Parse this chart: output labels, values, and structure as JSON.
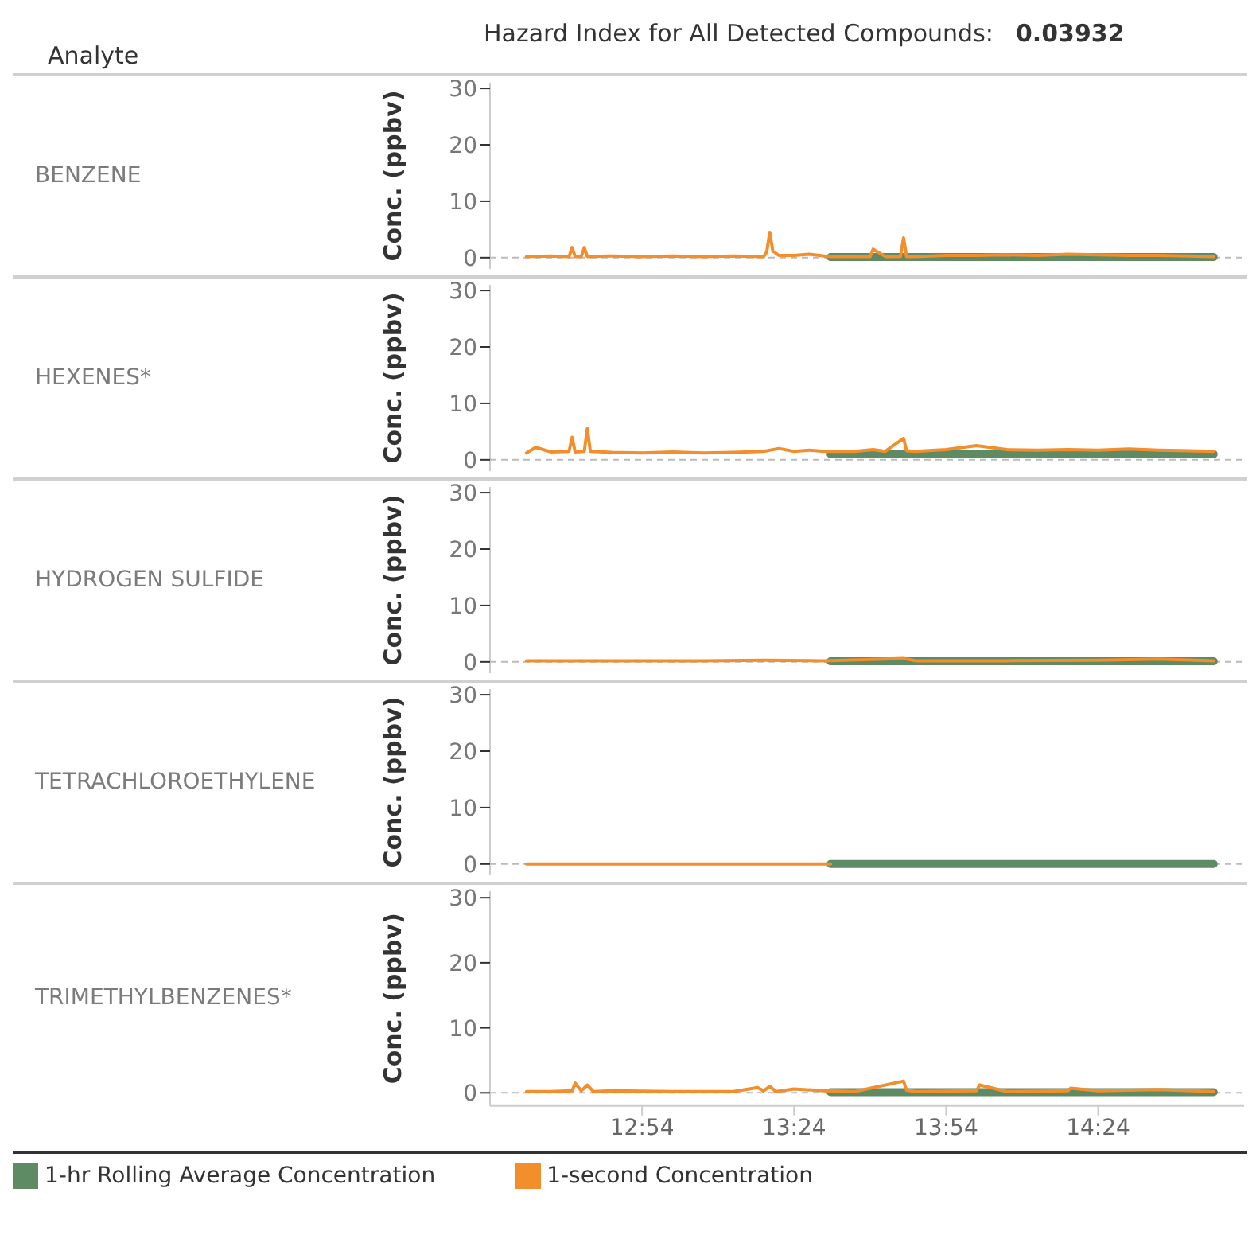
{
  "chart_data": [
    {
      "type": "line",
      "annotations": [
        "Analyte",
        "Hazard Index for All Detected Compounds:",
        "0.03932",
        "BENZENE"
      ],
      "ylabel": "Conc. (ppbv)",
      "xlim": [
        12.4,
        14.88
      ],
      "ylim": [
        -2,
        31
      ],
      "yticks": [
        0,
        10,
        20,
        30
      ],
      "tick_labels": "y",
      "legend": false,
      "ref_lines": [
        {
          "axis": "y",
          "value": 0,
          "line_style": "dashed",
          "color": "#bbbbbb"
        }
      ],
      "series": [
        {
          "color": "#f28e2b",
          "x": [
            12.52,
            12.6,
            12.66,
            12.67,
            12.68,
            12.7,
            12.71,
            12.72,
            12.8,
            12.9,
            13.0,
            13.1,
            13.2,
            13.3,
            13.31,
            13.32,
            13.33,
            13.35,
            13.4,
            13.45,
            13.5,
            13.52,
            13.6,
            13.65,
            13.66,
            13.7,
            13.75,
            13.76,
            13.77,
            13.8,
            13.9,
            14.0,
            14.1,
            14.2,
            14.3,
            14.4,
            14.5,
            14.6,
            14.7,
            14.78
          ],
          "values": [
            0.2,
            0.3,
            0.2,
            1.8,
            0.2,
            0.2,
            1.8,
            0.2,
            0.3,
            0.2,
            0.3,
            0.2,
            0.3,
            0.2,
            1.0,
            4.5,
            1.2,
            0.4,
            0.4,
            0.6,
            0.3,
            0.2,
            0.2,
            0.2,
            1.5,
            0.2,
            0.2,
            3.5,
            0.2,
            0.2,
            0.4,
            0.4,
            0.5,
            0.4,
            0.6,
            0.5,
            0.4,
            0.4,
            0.3,
            0.2
          ]
        },
        {
          "color": "#5f8b64",
          "x": [
            13.52,
            13.8,
            14.1,
            14.4,
            14.78
          ],
          "values": [
            0.1,
            0.1,
            0.1,
            0.1,
            0.1
          ]
        }
      ]
    },
    {
      "type": "line",
      "annotations": [
        "HEXENES*"
      ],
      "ylabel": "Conc. (ppbv)",
      "xlim": [
        12.4,
        14.88
      ],
      "ylim": [
        -2,
        31
      ],
      "yticks": [
        0,
        10,
        20,
        30
      ],
      "tick_labels": "y",
      "legend": false,
      "ref_lines": [
        {
          "axis": "y",
          "value": 0,
          "line_style": "dashed",
          "color": "#bbbbbb"
        }
      ],
      "series": [
        {
          "color": "#f28e2b",
          "x": [
            12.52,
            12.55,
            12.6,
            12.66,
            12.67,
            12.68,
            12.71,
            12.72,
            12.73,
            12.8,
            12.9,
            13.0,
            13.1,
            13.2,
            13.3,
            13.35,
            13.4,
            13.45,
            13.5,
            13.6,
            13.66,
            13.7,
            13.76,
            13.77,
            13.8,
            13.9,
            14.0,
            14.1,
            14.2,
            14.3,
            14.4,
            14.5,
            14.6,
            14.7,
            14.78
          ],
          "values": [
            1.2,
            2.2,
            1.4,
            1.5,
            4.0,
            1.4,
            1.5,
            5.5,
            1.5,
            1.3,
            1.2,
            1.4,
            1.2,
            1.3,
            1.5,
            2.0,
            1.5,
            1.7,
            1.5,
            1.5,
            1.8,
            1.5,
            3.8,
            1.6,
            1.5,
            1.8,
            2.5,
            1.8,
            1.7,
            1.8,
            1.7,
            1.9,
            1.7,
            1.6,
            1.5
          ]
        },
        {
          "color": "#5f8b64",
          "x": [
            13.52,
            13.8,
            14.1,
            14.4,
            14.78
          ],
          "values": [
            1.0,
            1.0,
            1.0,
            1.0,
            1.0
          ]
        }
      ]
    },
    {
      "type": "line",
      "annotations": [
        "HYDROGEN SULFIDE"
      ],
      "ylabel": "Conc. (ppbv)",
      "xlim": [
        12.4,
        14.88
      ],
      "ylim": [
        -2,
        31
      ],
      "yticks": [
        0,
        10,
        20,
        30
      ],
      "tick_labels": "y",
      "legend": false,
      "ref_lines": [
        {
          "axis": "y",
          "value": 0,
          "line_style": "dashed",
          "color": "#bbbbbb"
        }
      ],
      "series": [
        {
          "color": "#f28e2b",
          "x": [
            12.52,
            12.7,
            12.9,
            13.1,
            13.3,
            13.5,
            13.76,
            13.8,
            14.1,
            14.4,
            14.6,
            14.78
          ],
          "values": [
            0.2,
            0.2,
            0.2,
            0.2,
            0.3,
            0.2,
            0.6,
            0.2,
            0.2,
            0.3,
            0.5,
            0.2
          ]
        },
        {
          "color": "#5f8b64",
          "x": [
            13.52,
            13.8,
            14.1,
            14.4,
            14.78
          ],
          "values": [
            0.1,
            0.1,
            0.1,
            0.1,
            0.1
          ]
        }
      ]
    },
    {
      "type": "line",
      "annotations": [
        "TETRACHLOROETHYLENE"
      ],
      "ylabel": "Conc. (ppbv)",
      "xlim": [
        12.4,
        14.88
      ],
      "ylim": [
        -2,
        31
      ],
      "yticks": [
        0,
        10,
        20,
        30
      ],
      "tick_labels": "y",
      "legend": false,
      "ref_lines": [
        {
          "axis": "y",
          "value": 0,
          "line_style": "dashed",
          "color": "#bbbbbb"
        }
      ],
      "series": [
        {
          "color": "#f28e2b",
          "x": [
            12.52,
            13.0,
            13.52
          ],
          "values": [
            0,
            0,
            0
          ]
        },
        {
          "color": "#5f8b64",
          "x": [
            13.52,
            13.8,
            14.1,
            14.4,
            14.78
          ],
          "values": [
            0,
            0,
            0,
            0,
            0
          ]
        }
      ]
    },
    {
      "type": "line",
      "annotations": [
        "TRIMETHYLBENZENES*"
      ],
      "ylabel": "Conc. (ppbv)",
      "xlim": [
        12.4,
        14.88
      ],
      "xticks": [
        {
          "value": 12.9,
          "label": "12:54"
        },
        {
          "value": 13.4,
          "label": "13:24"
        },
        {
          "value": 13.9,
          "label": "13:54"
        },
        {
          "value": 14.4,
          "label": "14:24"
        }
      ],
      "ylim": [
        -2,
        31
      ],
      "yticks": [
        0,
        10,
        20,
        30
      ],
      "legend": "bottom",
      "ref_lines": [
        {
          "axis": "y",
          "value": 0,
          "line_style": "dashed",
          "color": "#bbbbbb"
        }
      ],
      "series": [
        {
          "name": "1-second Concentration",
          "color": "#f28e2b",
          "x": [
            12.52,
            12.6,
            12.67,
            12.68,
            12.7,
            12.72,
            12.74,
            12.8,
            13.0,
            13.2,
            13.28,
            13.3,
            13.32,
            13.34,
            13.4,
            13.5,
            13.6,
            13.76,
            13.77,
            13.8,
            14.0,
            14.01,
            14.1,
            14.3,
            14.31,
            14.4,
            14.6,
            14.78
          ],
          "values": [
            0.2,
            0.2,
            0.3,
            1.5,
            0.3,
            1.2,
            0.2,
            0.3,
            0.2,
            0.2,
            0.8,
            0.3,
            1.0,
            0.2,
            0.6,
            0.3,
            0.2,
            1.8,
            0.4,
            0.2,
            0.3,
            1.2,
            0.2,
            0.3,
            0.7,
            0.3,
            0.5,
            0.2
          ]
        },
        {
          "name": "1-hr Rolling Average Concentration",
          "color": "#5f8b64",
          "x": [
            13.52,
            13.8,
            14.1,
            14.4,
            14.78
          ],
          "values": [
            0.1,
            0.1,
            0.1,
            0.1,
            0.1
          ]
        }
      ]
    }
  ]
}
